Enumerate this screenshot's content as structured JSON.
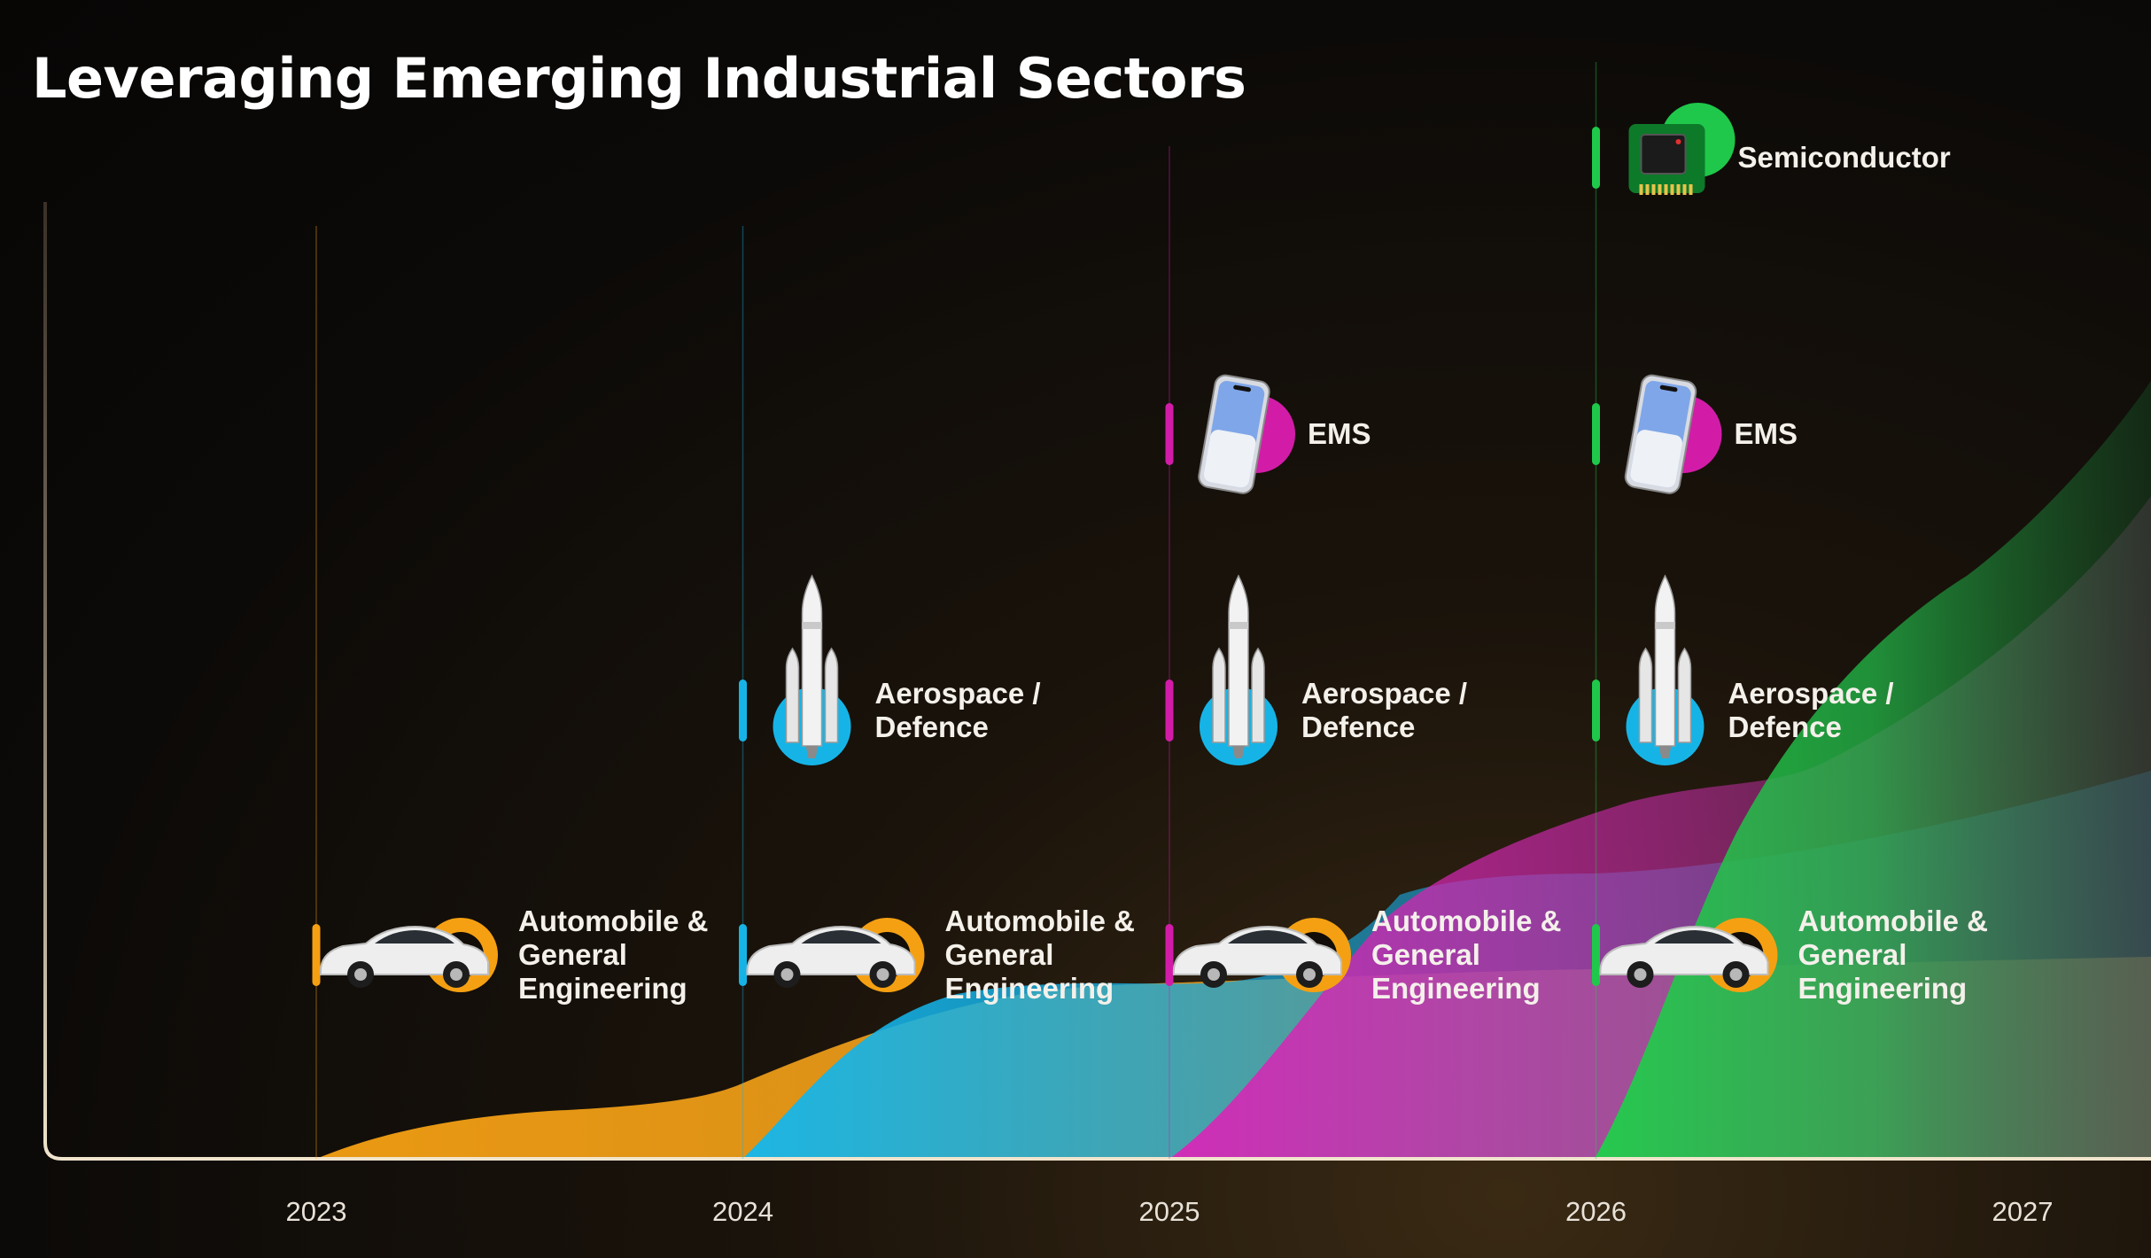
{
  "title": "Leveraging Emerging Industrial Sectors",
  "chart_data": {
    "type": "area",
    "title": "Leveraging Emerging Industrial Sectors",
    "x": [
      "2023",
      "2024",
      "2025",
      "2026",
      "2027"
    ],
    "series": [
      {
        "name": "Automobile & General Engineering",
        "start": "2023",
        "color": "#f5a012"
      },
      {
        "name": "Aerospace / Defence",
        "start": "2024",
        "color": "#16b4e6"
      },
      {
        "name": "EMS",
        "start": "2025",
        "color": "#d21ca8"
      },
      {
        "name": "Semiconductor",
        "start": "2026",
        "color": "#1fc84a"
      }
    ],
    "milestones": [
      {
        "year": "2023",
        "marker_color": "#f5a012",
        "sectors": [
          "auto"
        ]
      },
      {
        "year": "2024",
        "marker_color": "#16b4e6",
        "sectors": [
          "auto",
          "aero"
        ]
      },
      {
        "year": "2025",
        "marker_color": "#d21ca8",
        "sectors": [
          "auto",
          "aero",
          "ems"
        ]
      },
      {
        "year": "2026",
        "marker_color": "#1fc84a",
        "sectors": [
          "auto",
          "aero",
          "ems",
          "semi"
        ]
      }
    ],
    "sector_labels": {
      "auto": [
        "Automobile &",
        "General",
        "Engineering"
      ],
      "aero": [
        "Aerospace /",
        "Defence"
      ],
      "ems": [
        "EMS"
      ],
      "semi": [
        "Semiconductor"
      ]
    },
    "sector_icons": {
      "auto": "car-icon",
      "aero": "rocket-icon",
      "ems": "smartphone-icon",
      "semi": "chip-icon"
    },
    "sector_icon_colors": {
      "auto": "#f5a012",
      "aero": "#16b4e6",
      "ems": "#d21ca8",
      "semi": "#1fc84a"
    },
    "grid": false,
    "legend": "none"
  }
}
